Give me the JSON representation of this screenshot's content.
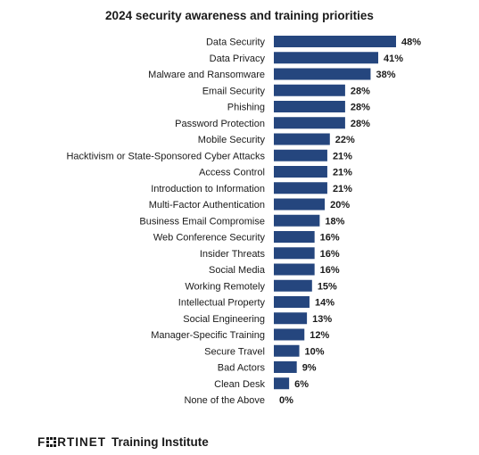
{
  "header": {
    "title": "2024 security awareness and training priorities"
  },
  "footer": {
    "logo_text": "FORTINET",
    "logo_prefix": "F",
    "logo_suffix_letters": "RTINET",
    "suffix": "Training Institute"
  },
  "colors": {
    "bar": "#25467e",
    "text": "#1a1a1a"
  },
  "chart_data": {
    "type": "bar",
    "orientation": "horizontal",
    "title": "2024 security awareness and training priorities",
    "xlabel": "",
    "ylabel": "",
    "xlim": [
      0,
      48
    ],
    "grid": false,
    "legend": "none",
    "value_suffix": "%",
    "categories": [
      "Data Security",
      "Data Privacy",
      "Malware and Ransomware",
      "Email Security",
      "Phishing",
      "Password Protection",
      "Mobile Security",
      "Hacktivism or State-Sponsored Cyber Attacks",
      "Access Control",
      "Introduction to Information",
      "Multi-Factor Authentication",
      "Business Email Compromise",
      "Web Conference Security",
      "Insider Threats",
      "Social Media",
      "Working Remotely",
      "Intellectual Property",
      "Social Engineering",
      "Manager-Specific Training",
      "Secure Travel",
      "Bad Actors",
      "Clean Desk",
      "None of the Above"
    ],
    "values": [
      48,
      41,
      38,
      28,
      28,
      28,
      22,
      21,
      21,
      21,
      20,
      18,
      16,
      16,
      16,
      15,
      14,
      13,
      12,
      10,
      9,
      6,
      0
    ]
  }
}
